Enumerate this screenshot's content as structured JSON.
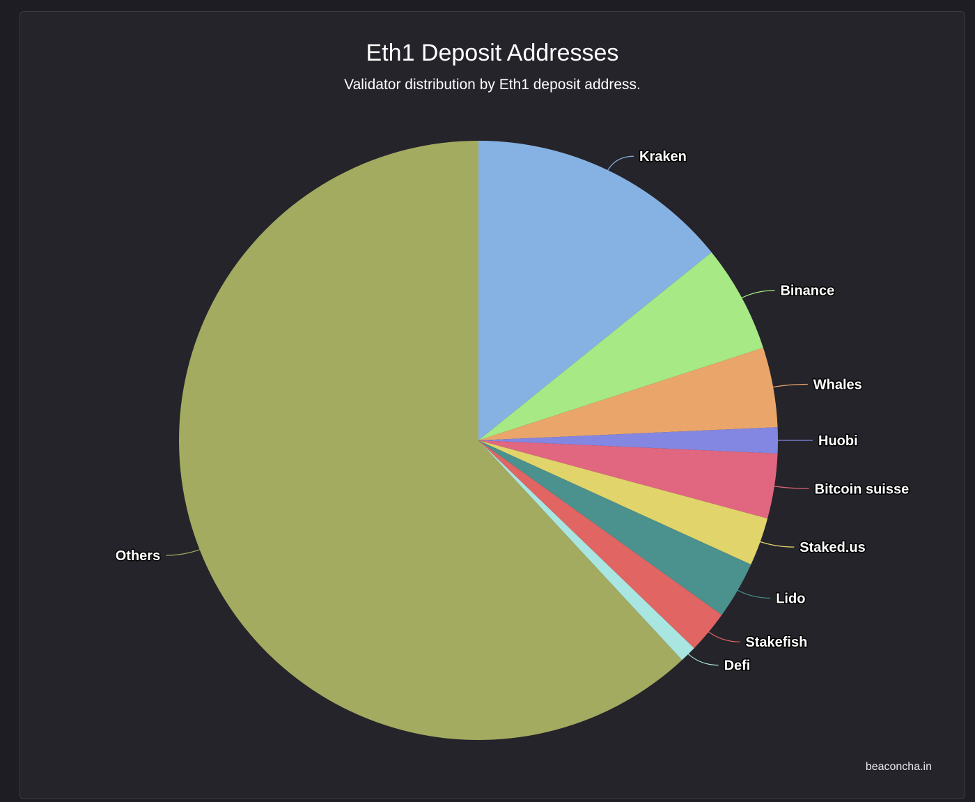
{
  "chart_data": {
    "type": "pie",
    "title": "Eth1 Deposit Addresses",
    "subtitle": "Validator distribution by Eth1 deposit address.",
    "slices": [
      {
        "label": "Kraken",
        "value": 14.2,
        "color": "#86b2e3"
      },
      {
        "label": "Binance",
        "value": 5.8,
        "color": "#a6e985"
      },
      {
        "label": "Whales",
        "value": 4.3,
        "color": "#eaa66a"
      },
      {
        "label": "Huobi",
        "value": 1.4,
        "color": "#8487e1"
      },
      {
        "label": "Bitcoin suisse",
        "value": 3.5,
        "color": "#e0677f"
      },
      {
        "label": "Staked.us",
        "value": 2.6,
        "color": "#e0d46b"
      },
      {
        "label": "Lido",
        "value": 3.1,
        "color": "#4b918e"
      },
      {
        "label": "Stakefish",
        "value": 2.3,
        "color": "#e16563"
      },
      {
        "label": "Defi",
        "value": 0.9,
        "color": "#a9e6e1"
      },
      {
        "label": "Others",
        "value": 61.9,
        "color": "#a3ab61"
      }
    ]
  },
  "credit": "beaconcha.in"
}
